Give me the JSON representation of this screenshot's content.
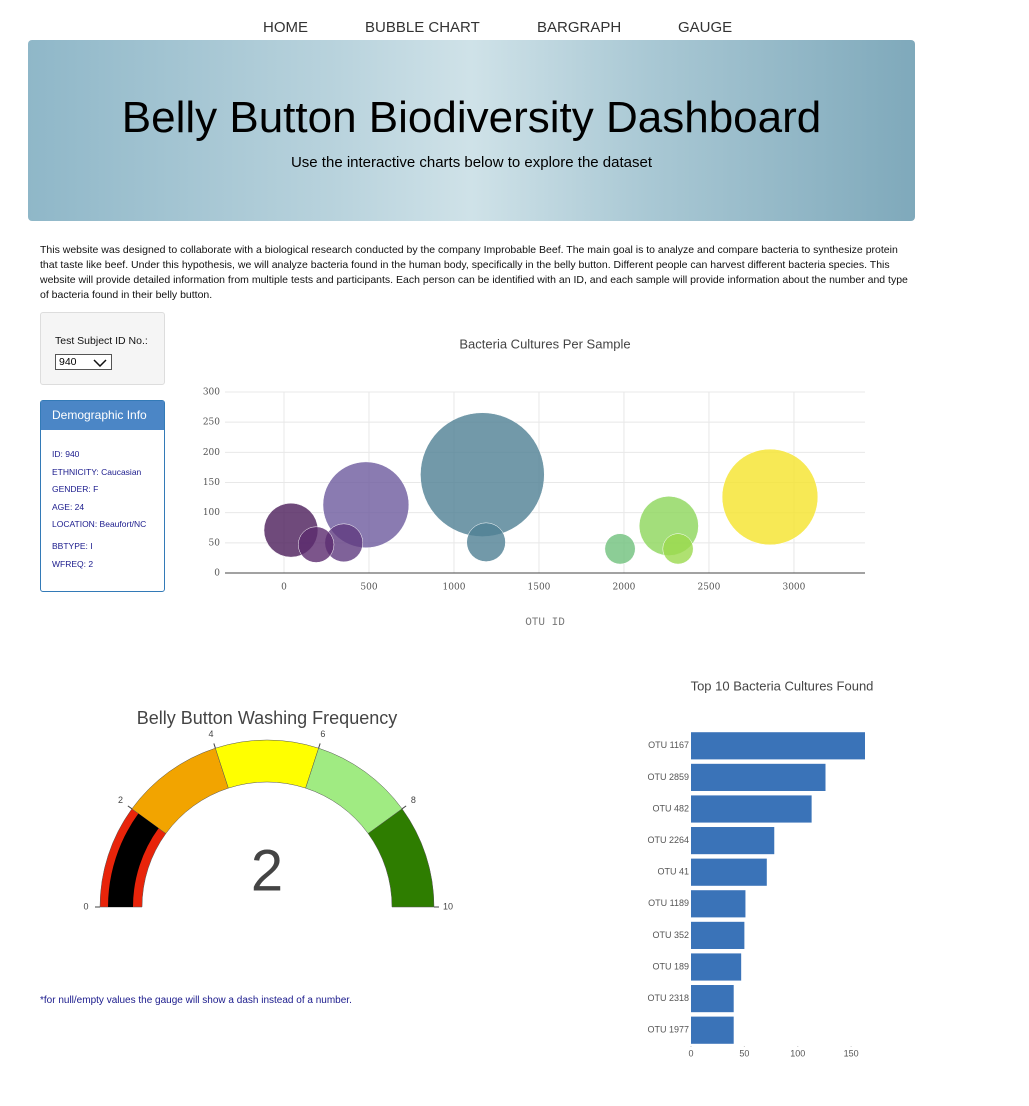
{
  "nav": [
    "HOME",
    "BUBBLE CHART",
    "BARGRAPH",
    "GAUGE"
  ],
  "header": {
    "title": "Belly Button Biodiversity Dashboard",
    "subtitle": "Use the interactive charts below to explore the dataset"
  },
  "intro": "This website was designed to collaborate with a biological research conducted by the company Improbable Beef. The main goal is to analyze and compare bacteria to synthesize protein that taste like beef. Under this hypothesis, we will analyze bacteria found in the human body, specifically in the belly button. Different people can harvest different bacteria species. This website will provide detailed information from multiple tests and participants. Each person can be identified with an ID, and each sample will provide information about the number and type of bacteria found in their belly button.",
  "selector": {
    "label": "Test Subject ID No.:",
    "value": "940"
  },
  "demographics": {
    "title": "Demographic Info",
    "rows": [
      "ID: 940",
      "ETHNICITY: Caucasian",
      "GENDER: F",
      "AGE: 24",
      "LOCATION: Beaufort/NC",
      "BBTYPE: I",
      "WFREQ: 2"
    ]
  },
  "note": "*for null/empty values the gauge will show a dash instead of a number.",
  "chart_data": [
    {
      "type": "bubble",
      "title": "Bacteria Cultures Per Sample",
      "x_label": "OTU ID",
      "x": [
        1167,
        2859,
        482,
        2264,
        41,
        1189,
        352,
        189,
        2318,
        1977
      ],
      "y": [
        163,
        126,
        113,
        78,
        71,
        51,
        50,
        47,
        40,
        40
      ],
      "colors": [
        "#4f7f94",
        "#f5e42a",
        "#6d5a9e",
        "#8cd65a",
        "#4b1d5a",
        "#4f7f94",
        "#5f3b80",
        "#5b2a6e",
        "#9bd94d",
        "#6fc07c"
      ],
      "xlim": [
        -347,
        3418
      ],
      "ylim": [
        0,
        300
      ],
      "xticks": [
        0,
        500,
        1000,
        1500,
        2000,
        2500,
        3000
      ],
      "yticks": [
        0,
        50,
        100,
        150,
        200,
        250,
        300
      ],
      "grid": true
    },
    {
      "type": "gauge",
      "title": "Belly Button Washing Frequency",
      "value": 2,
      "range": [
        0,
        10
      ],
      "ticks": [
        0,
        2,
        4,
        6,
        8,
        10
      ],
      "bar_color": "#000000",
      "steps": [
        {
          "range": [
            0,
            2
          ],
          "color": "#e8240a"
        },
        {
          "range": [
            2,
            4
          ],
          "color": "#f2a400"
        },
        {
          "range": [
            4,
            6
          ],
          "color": "#ffff00"
        },
        {
          "range": [
            6,
            8
          ],
          "color": "#a0eb82"
        },
        {
          "range": [
            8,
            10
          ],
          "color": "#2e7d00"
        }
      ]
    },
    {
      "type": "hbar",
      "title": "Top 10 Bacteria Cultures Found",
      "categories": [
        "OTU 1167",
        "OTU 2859",
        "OTU 482",
        "OTU 2264",
        "OTU 41",
        "OTU 1189",
        "OTU 352",
        "OTU 189",
        "OTU 2318",
        "OTU 1977"
      ],
      "values": [
        163,
        126,
        113,
        78,
        71,
        51,
        50,
        47,
        40,
        40
      ],
      "color": "#3a73b8",
      "xlim": [
        0,
        163
      ],
      "xticks": [
        0,
        50,
        100,
        150
      ]
    }
  ]
}
